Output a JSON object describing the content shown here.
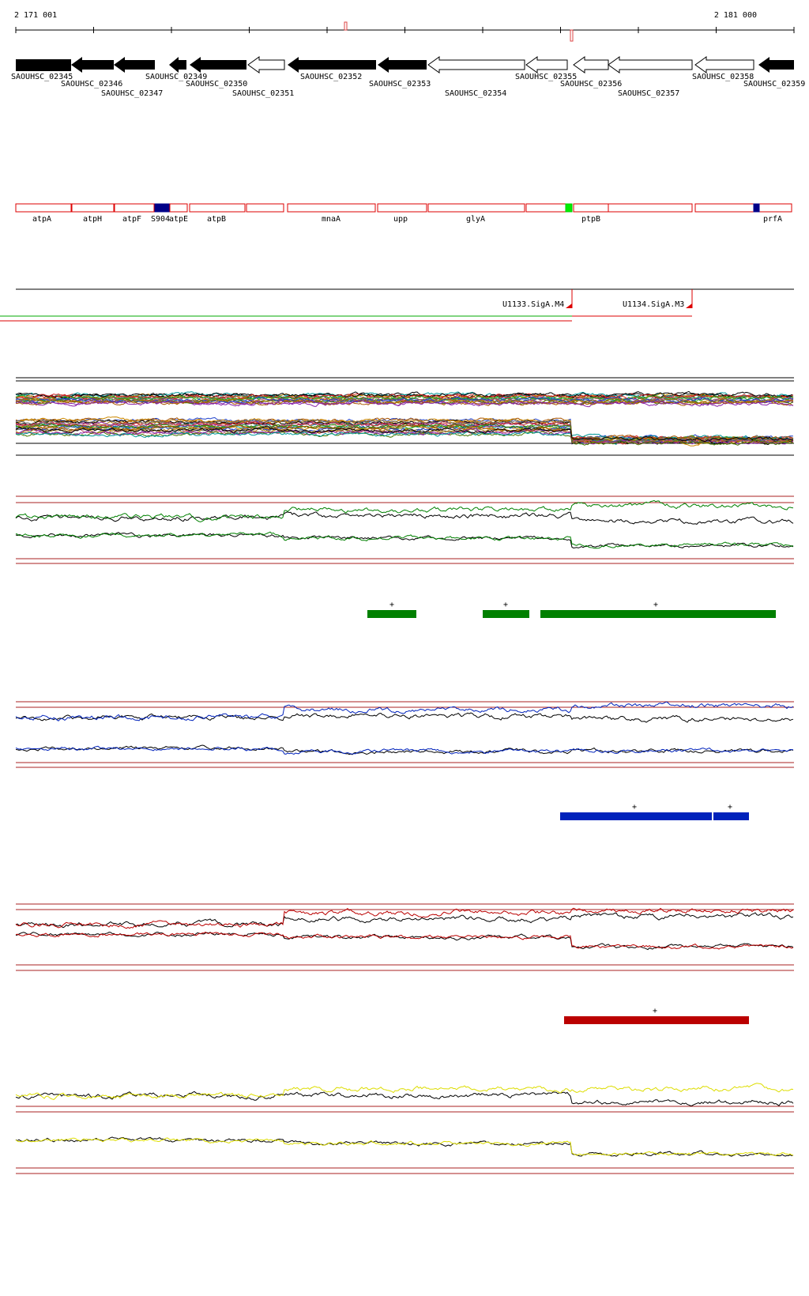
{
  "ruler": {
    "start_label": "2 171 001",
    "end_label": "2 181 000"
  },
  "genes": [
    {
      "id": "SAOUHSC_02345",
      "strand": "-",
      "filled": true
    },
    {
      "id": "SAOUHSC_02346",
      "strand": "-",
      "filled": true
    },
    {
      "id": "SAOUHSC_02347",
      "strand": "-",
      "filled": true
    },
    {
      "id": "SAOUHSC_02349",
      "strand": "-",
      "filled": true
    },
    {
      "id": "SAOUHSC_02350",
      "strand": "-",
      "filled": true
    },
    {
      "id": "SAOUHSC_02351",
      "strand": "-",
      "filled": false
    },
    {
      "id": "SAOUHSC_02352",
      "strand": "-",
      "filled": true
    },
    {
      "id": "SAOUHSC_02353",
      "strand": "-",
      "filled": true
    },
    {
      "id": "SAOUHSC_02354",
      "strand": "-",
      "filled": false
    },
    {
      "id": "SAOUHSC_02355",
      "strand": "-",
      "filled": false
    },
    {
      "id": "SAOUHSC_02356",
      "strand": "-",
      "filled": false
    },
    {
      "id": "SAOUHSC_02357",
      "strand": "-",
      "filled": false
    },
    {
      "id": "SAOUHSC_02358",
      "strand": "-",
      "filled": false
    },
    {
      "id": "SAOUHSC_02359",
      "strand": "-",
      "filled": true
    }
  ],
  "gene_names": [
    "atpA",
    "atpH",
    "atpF",
    "S904",
    "atpE",
    "atpB",
    "mnaA",
    "upp",
    "glyA",
    "ptpB",
    "prfA"
  ],
  "transcription_units": [
    {
      "label": "U1133.SigA.M4"
    },
    {
      "label": "U1134.SigA.M3"
    }
  ],
  "segment_marks": {
    "green": [
      "+",
      "+",
      "+"
    ],
    "blue": [
      "+",
      "+"
    ],
    "red": [
      "+"
    ]
  },
  "colors": {
    "gene_outline": "#dd0000",
    "green_track": "#008000",
    "blue_track": "#0022bb",
    "red_track": "#bb0000",
    "yellow_track": "#dddd00",
    "highlight_green": "#00ee00",
    "highlight_blue": "#000088"
  }
}
